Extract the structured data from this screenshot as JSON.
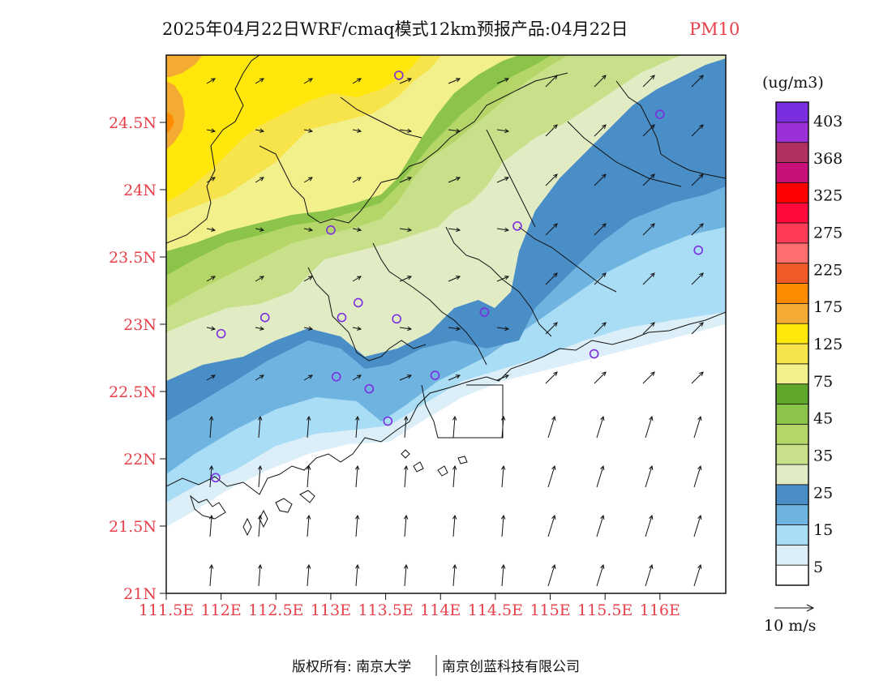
{
  "header": {
    "title": "2025年04月22日WRF/cmaq模式12km预报产品:04月22日",
    "variable": "PM10"
  },
  "map": {
    "lon_min": 111.5,
    "lon_max": 116.6,
    "lat_min": 21.0,
    "lat_max": 25.0,
    "lat_ticks": [
      {
        "value": 24.5,
        "label": "24.5N"
      },
      {
        "value": 24.0,
        "label": "24N"
      },
      {
        "value": 23.5,
        "label": "23.5N"
      },
      {
        "value": 23.0,
        "label": "23N"
      },
      {
        "value": 22.5,
        "label": "22.5N"
      },
      {
        "value": 22.0,
        "label": "22N"
      },
      {
        "value": 21.5,
        "label": "21.5N"
      },
      {
        "value": 21.0,
        "label": "21N"
      }
    ],
    "lon_ticks": [
      {
        "value": 111.5,
        "label": "111.5E"
      },
      {
        "value": 112.0,
        "label": "112E"
      },
      {
        "value": 112.5,
        "label": "112.5E"
      },
      {
        "value": 113.0,
        "label": "113E"
      },
      {
        "value": 113.5,
        "label": "113.5E"
      },
      {
        "value": 114.0,
        "label": "114E"
      },
      {
        "value": 114.5,
        "label": "114.5E"
      },
      {
        "value": 115.0,
        "label": "115E"
      },
      {
        "value": 115.5,
        "label": "115.5E"
      },
      {
        "value": 116.0,
        "label": "116E"
      }
    ],
    "stations": [
      {
        "lon": 113.62,
        "lat": 24.85
      },
      {
        "lon": 116.0,
        "lat": 24.56
      },
      {
        "lon": 113.0,
        "lat": 23.7
      },
      {
        "lon": 114.7,
        "lat": 23.73
      },
      {
        "lon": 116.35,
        "lat": 23.55
      },
      {
        "lon": 113.25,
        "lat": 23.16
      },
      {
        "lon": 112.4,
        "lat": 23.05
      },
      {
        "lon": 113.1,
        "lat": 23.05
      },
      {
        "lon": 113.6,
        "lat": 23.04
      },
      {
        "lon": 114.4,
        "lat": 23.09
      },
      {
        "lon": 112.0,
        "lat": 22.93
      },
      {
        "lon": 115.4,
        "lat": 22.78
      },
      {
        "lon": 113.05,
        "lat": 22.61
      },
      {
        "lon": 113.35,
        "lat": 22.52
      },
      {
        "lon": 113.95,
        "lat": 22.62
      },
      {
        "lon": 113.52,
        "lat": 22.28
      },
      {
        "lon": 111.95,
        "lat": 21.86
      }
    ]
  },
  "colorbar": {
    "unit": "(ug/m3)",
    "colors": [
      "#ffffff",
      "#dceff8",
      "#a9dcf5",
      "#6fb4e0",
      "#4a8ec8",
      "#e2ecc4",
      "#c9e08a",
      "#b4d568",
      "#8cc44a",
      "#5fa82c",
      "#f2f08a",
      "#f7e34b",
      "#ffe60b",
      "#f5ab33",
      "#ff8c00",
      "#f05a28",
      "#ff6e6e",
      "#ff3b58",
      "#ff0a3a",
      "#ff0000",
      "#c8107a",
      "#b03060",
      "#9b30d8",
      "#7b2ee0"
    ],
    "labels": [
      "5",
      "15",
      "25",
      "35",
      "45",
      "75",
      "125",
      "175",
      "225",
      "275",
      "325",
      "368",
      "403"
    ]
  },
  "wind": {
    "scale_label": "10 m/s"
  },
  "footer": {
    "left": "版权所有: 南京大学",
    "right": "南京创蓝科技有限公司"
  }
}
